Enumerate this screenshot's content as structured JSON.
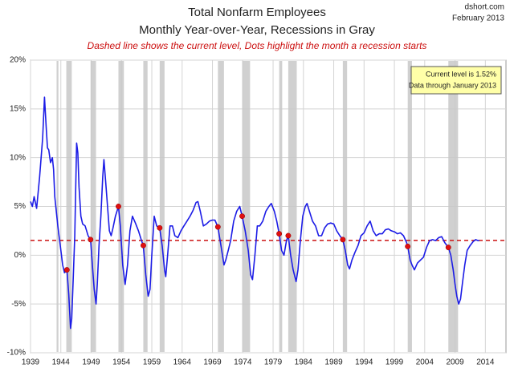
{
  "chart_data": {
    "type": "line",
    "title": "Total Nonfarm Employees",
    "subtitle": "Monthly Year-over-Year, Recessions in Gray",
    "note": "Dashed line shows the current level, Dots highlight the month a recession starts",
    "source": [
      "dshort.com",
      "February 2013"
    ],
    "annotations": [
      "Current level is 1.52%",
      "Data through January 2013"
    ],
    "color": "#1c1ce6",
    "grid": true,
    "xlim": [
      1939,
      2017.4
    ],
    "xticks": [
      1939,
      1944,
      1949,
      1954,
      1959,
      1964,
      1969,
      1974,
      1979,
      1984,
      1989,
      1994,
      1999,
      2004,
      2009,
      2014
    ],
    "ylim": [
      -10,
      20
    ],
    "yticks": [
      {
        "value": -10,
        "label": "-10%"
      },
      {
        "value": -5,
        "label": "-5%"
      },
      {
        "value": 0,
        "label": "0%"
      },
      {
        "value": 5,
        "label": "5%"
      },
      {
        "value": 10,
        "label": "10%"
      },
      {
        "value": 15,
        "label": "15%"
      },
      {
        "value": 20,
        "label": "20%"
      }
    ],
    "x": [
      1939.0,
      1939.3,
      1939.6,
      1940.0,
      1940.5,
      1941.0,
      1941.3,
      1941.6,
      1941.8,
      1942.0,
      1942.3,
      1942.6,
      1942.8,
      1943.0,
      1943.5,
      1944.0,
      1944.3,
      1944.6,
      1945.0,
      1945.3,
      1945.6,
      1945.8,
      1946.0,
      1946.3,
      1946.6,
      1946.8,
      1947.0,
      1947.3,
      1947.6,
      1948.0,
      1948.5,
      1948.9,
      1949.2,
      1949.5,
      1949.8,
      1950.0,
      1950.3,
      1950.6,
      1950.9,
      1951.1,
      1951.4,
      1951.7,
      1952.0,
      1952.3,
      1952.6,
      1953.0,
      1953.5,
      1953.8,
      1954.2,
      1954.6,
      1955.0,
      1955.4,
      1955.8,
      1956.3,
      1956.8,
      1957.3,
      1957.6,
      1958.0,
      1958.4,
      1958.7,
      1959.0,
      1959.4,
      1959.8,
      1960.3,
      1960.7,
      1961.1,
      1961.3,
      1961.6,
      1962.0,
      1962.4,
      1962.8,
      1963.3,
      1963.8,
      1964.3,
      1964.8,
      1965.3,
      1965.8,
      1966.3,
      1966.6,
      1967.0,
      1967.5,
      1968.0,
      1968.5,
      1969.0,
      1969.4,
      1969.9,
      1970.4,
      1970.9,
      1971.2,
      1971.6,
      1972.0,
      1972.5,
      1973.0,
      1973.5,
      1973.9,
      1974.4,
      1974.9,
      1975.3,
      1975.6,
      1976.0,
      1976.4,
      1976.8,
      1977.3,
      1977.8,
      1978.3,
      1978.7,
      1979.2,
      1979.6,
      1980.0,
      1980.4,
      1980.8,
      1981.2,
      1981.5,
      1981.9,
      1982.3,
      1982.8,
      1983.1,
      1983.5,
      1983.9,
      1984.3,
      1984.6,
      1985.0,
      1985.5,
      1986.0,
      1986.5,
      1987.0,
      1987.5,
      1988.0,
      1988.5,
      1989.0,
      1989.5,
      1990.0,
      1990.5,
      1990.9,
      1991.3,
      1991.6,
      1992.0,
      1992.5,
      1993.0,
      1993.5,
      1994.0,
      1994.5,
      1995.0,
      1995.5,
      1996.0,
      1996.5,
      1997.0,
      1997.5,
      1998.0,
      1998.5,
      1999.0,
      1999.5,
      2000.0,
      2000.5,
      2001.0,
      2001.2,
      2001.6,
      2001.9,
      2002.3,
      2002.8,
      2003.3,
      2003.8,
      2004.3,
      2004.8,
      2005.3,
      2005.8,
      2006.3,
      2006.8,
      2007.3,
      2007.9,
      2008.3,
      2008.7,
      2009.0,
      2009.3,
      2009.6,
      2009.9,
      2010.2,
      2010.6,
      2011.0,
      2011.5,
      2012.0,
      2012.4,
      2012.8,
      2013.0
    ],
    "values": [
      5.5,
      5.0,
      6.0,
      4.8,
      8.0,
      12,
      16.2,
      13,
      11,
      10.8,
      9.5,
      10.0,
      8.8,
      6.0,
      3.0,
      0.5,
      -1.0,
      -1.8,
      -1.5,
      -4.0,
      -7.5,
      -6.5,
      -3.0,
      2.0,
      11.5,
      10.5,
      7.0,
      4.0,
      3.2,
      3.0,
      2.0,
      1.6,
      -1.0,
      -3.5,
      -5.0,
      -3.0,
      1.0,
      4.0,
      8.0,
      9.8,
      7.5,
      5.0,
      2.5,
      2.0,
      2.8,
      4.0,
      5.0,
      3.0,
      -1.0,
      -3.0,
      -1.0,
      2.5,
      4.0,
      3.3,
      2.5,
      1.5,
      1.0,
      -2.0,
      -4.2,
      -3.5,
      0.0,
      4.0,
      3.0,
      2.8,
      1.0,
      -1.5,
      -2.2,
      0.0,
      3.0,
      3.0,
      2.0,
      1.8,
      2.5,
      3.0,
      3.5,
      4.0,
      4.6,
      5.4,
      5.5,
      4.5,
      3.0,
      3.2,
      3.5,
      3.6,
      3.6,
      2.9,
      1.0,
      -1.0,
      -0.5,
      0.5,
      1.5,
      3.5,
      4.5,
      5.0,
      4.0,
      2.5,
      0.5,
      -2.0,
      -2.5,
      0.0,
      3.0,
      3.0,
      3.5,
      4.5,
      5.0,
      5.3,
      4.5,
      3.5,
      2.2,
      0.5,
      0.0,
      1.5,
      2.0,
      0.0,
      -1.5,
      -2.7,
      -1.5,
      1.5,
      4.0,
      5.0,
      5.3,
      4.5,
      3.5,
      3.0,
      2.0,
      2.0,
      2.8,
      3.2,
      3.3,
      3.2,
      2.5,
      2.0,
      1.6,
      0.5,
      -1.0,
      -1.4,
      -0.5,
      0.3,
      1.0,
      2.0,
      2.3,
      3.0,
      3.5,
      2.5,
      2.0,
      2.2,
      2.2,
      2.6,
      2.7,
      2.5,
      2.4,
      2.2,
      2.3,
      2.0,
      1.3,
      0.9,
      -0.5,
      -1.0,
      -1.5,
      -0.8,
      -0.5,
      -0.2,
      0.8,
      1.5,
      1.6,
      1.5,
      1.8,
      1.9,
      1.3,
      0.8,
      0.0,
      -1.5,
      -3.0,
      -4.2,
      -5.0,
      -4.5,
      -3.0,
      -1.0,
      0.5,
      1.0,
      1.4,
      1.6,
      1.5,
      1.52
    ],
    "recessions": {
      "color": "#c8c8c8",
      "spans": [
        [
          1943.3,
          1943.6
        ],
        [
          1944.9,
          1945.8
        ],
        [
          1948.9,
          1949.8
        ],
        [
          1953.5,
          1954.4
        ],
        [
          1957.6,
          1958.3
        ],
        [
          1960.3,
          1961.1
        ],
        [
          1969.9,
          1970.9
        ],
        [
          1973.9,
          1975.2
        ],
        [
          1980.0,
          1980.5
        ],
        [
          1981.5,
          1982.9
        ],
        [
          1990.5,
          1991.2
        ],
        [
          2001.2,
          2001.9
        ],
        [
          2007.9,
          2009.5
        ]
      ]
    },
    "recession_starts": {
      "color": "#e01010",
      "x": [
        1945.0,
        1948.9,
        1953.5,
        1957.6,
        1960.3,
        1969.9,
        1973.9,
        1980.0,
        1981.5,
        1990.5,
        2001.2,
        2007.9
      ],
      "values": [
        -1.5,
        1.6,
        5.0,
        1.0,
        2.8,
        2.9,
        4.0,
        2.2,
        2.0,
        1.6,
        0.9,
        0.8
      ]
    },
    "reference_line": {
      "value": 1.52,
      "color": "#cc1010"
    }
  }
}
